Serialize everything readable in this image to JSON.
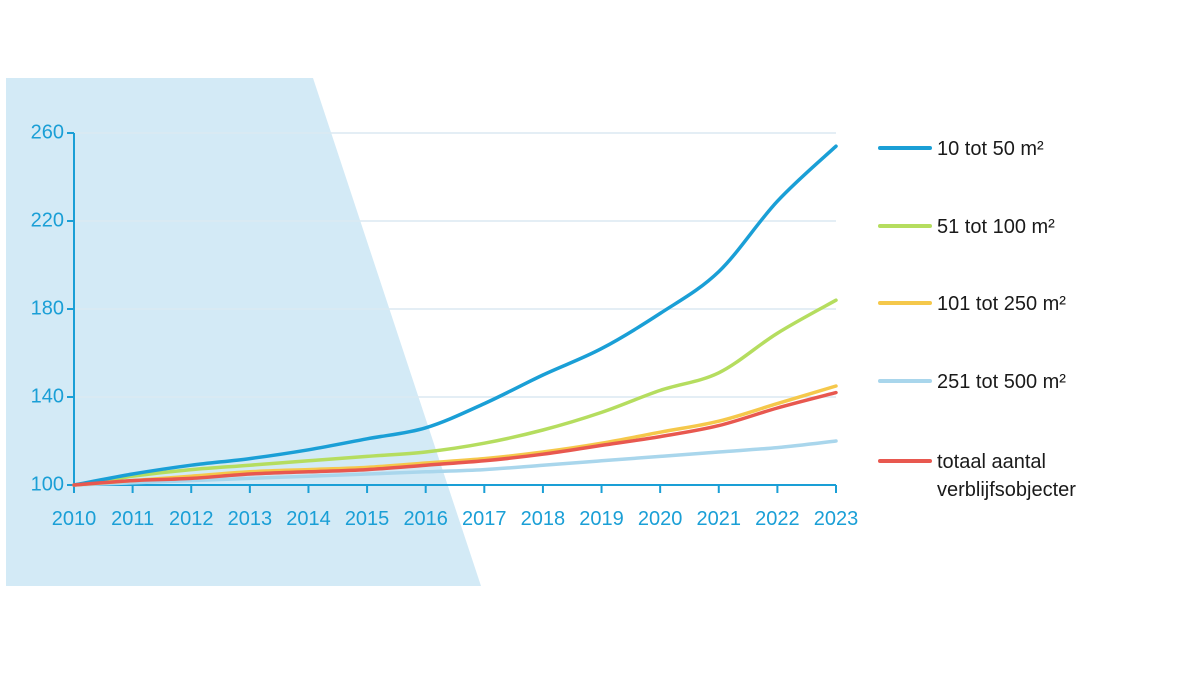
{
  "chart_data": {
    "type": "line",
    "title": "",
    "xlabel": "",
    "ylabel": "",
    "x": [
      "2010",
      "2011",
      "2012",
      "2013",
      "2014",
      "2015",
      "2016",
      "2017",
      "2018",
      "2019",
      "2020",
      "2021",
      "2022",
      "2023"
    ],
    "ylim": [
      100,
      260
    ],
    "yticks": [
      "100",
      "140",
      "180",
      "220",
      "260"
    ],
    "grid": "horizontal",
    "legend_position": "right",
    "series": [
      {
        "name": "10 tot 50 m²",
        "color": "#1a9fd6",
        "values": [
          100,
          105,
          109,
          112,
          116,
          121,
          126,
          137,
          150,
          162,
          178,
          197,
          229,
          254
        ]
      },
      {
        "name": "51 tot 100 m²",
        "color": "#b5dd5f",
        "values": [
          100,
          104,
          107,
          109,
          111,
          113,
          115,
          119,
          125,
          133,
          143,
          151,
          169,
          184
        ]
      },
      {
        "name": "101 tot 250 m²",
        "color": "#f5c84b",
        "values": [
          100,
          102,
          104,
          106,
          107,
          108,
          110,
          112,
          115,
          119,
          124,
          129,
          137,
          145
        ]
      },
      {
        "name": "251 tot 500 m²",
        "color": "#a9d6ec",
        "values": [
          100,
          101,
          102,
          103,
          104,
          105,
          106,
          107,
          109,
          111,
          113,
          115,
          117,
          120
        ]
      },
      {
        "name": "totaal aantal verblijfsobjecter",
        "color": "#e8584f",
        "values": [
          100,
          102,
          103,
          105,
          106,
          107,
          109,
          111,
          114,
          118,
          122,
          127,
          135,
          142
        ]
      }
    ],
    "legend_lines": [
      [
        "10 tot 50 m²"
      ],
      [
        "51 tot 100 m²"
      ],
      [
        "101 tot 250 m²"
      ],
      [
        "251 tot 500 m²"
      ],
      [
        "totaal aantal",
        "verblijfsobjecter"
      ]
    ]
  },
  "colors": {
    "axis": "#1a9fd6",
    "grid": "#dbe9f2",
    "background_shape": "#d3eaf6"
  }
}
